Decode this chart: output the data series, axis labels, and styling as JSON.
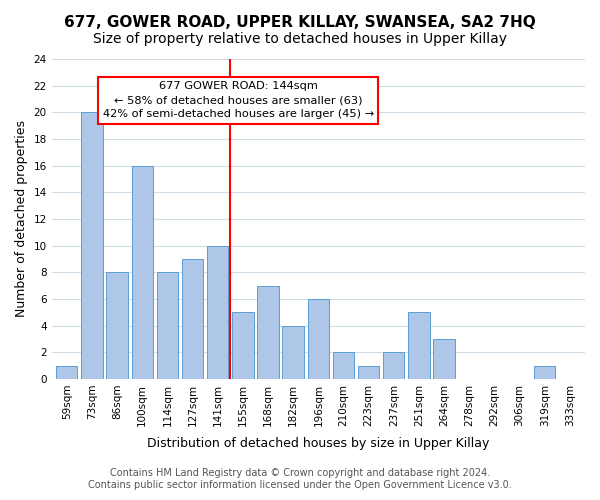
{
  "title": "677, GOWER ROAD, UPPER KILLAY, SWANSEA, SA2 7HQ",
  "subtitle": "Size of property relative to detached houses in Upper Killay",
  "xlabel": "Distribution of detached houses by size in Upper Killay",
  "ylabel": "Number of detached properties",
  "bin_labels": [
    "59sqm",
    "73sqm",
    "86sqm",
    "100sqm",
    "114sqm",
    "127sqm",
    "141sqm",
    "155sqm",
    "168sqm",
    "182sqm",
    "196sqm",
    "210sqm",
    "223sqm",
    "237sqm",
    "251sqm",
    "264sqm",
    "278sqm",
    "292sqm",
    "306sqm",
    "319sqm",
    "333sqm"
  ],
  "bar_values": [
    1,
    20,
    8,
    16,
    8,
    9,
    10,
    5,
    7,
    4,
    6,
    2,
    1,
    2,
    5,
    3,
    0,
    0,
    0,
    1,
    0
  ],
  "bar_color": "#aec6e8",
  "bar_edge_color": "#5a9fd4",
  "highlight_index": 6,
  "highlight_color": "#ff0000",
  "annotation_line1": "677 GOWER ROAD: 144sqm",
  "annotation_line2": "← 58% of detached houses are smaller (63)",
  "annotation_line3": "42% of semi-detached houses are larger (45) →",
  "vline_color": "#ff0000",
  "ylim": [
    0,
    24
  ],
  "yticks": [
    0,
    2,
    4,
    6,
    8,
    10,
    12,
    14,
    16,
    18,
    20,
    22,
    24
  ],
  "footer_line1": "Contains HM Land Registry data © Crown copyright and database right 2024.",
  "footer_line2": "Contains public sector information licensed under the Open Government Licence v3.0.",
  "background_color": "#ffffff",
  "grid_color": "#d0dce8",
  "title_fontsize": 11,
  "subtitle_fontsize": 10,
  "axis_label_fontsize": 9,
  "tick_fontsize": 7.5,
  "footer_fontsize": 7
}
